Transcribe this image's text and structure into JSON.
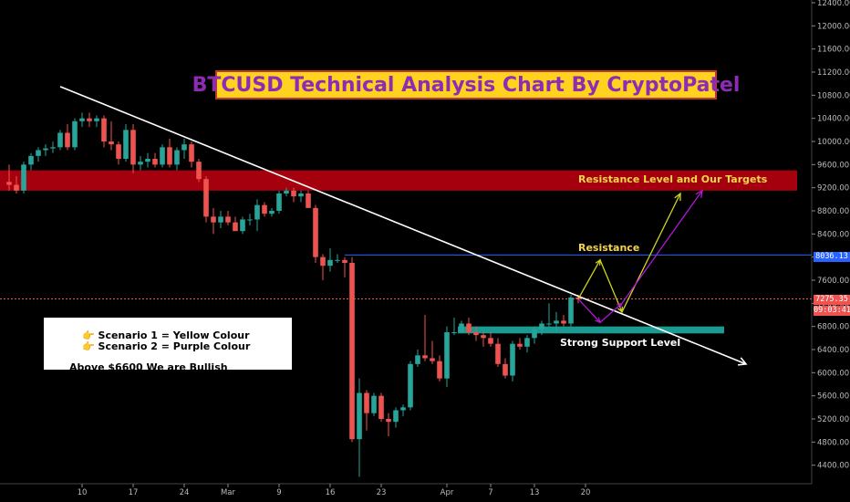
{
  "chart_data": {
    "type": "candlestick",
    "title": "BTCUSD Technical Analysis Chart By CryptoPatel",
    "ylim": [
      4000,
      12400
    ],
    "y_ticks": [
      4400,
      4800,
      5200,
      5600,
      6000,
      6400,
      6800,
      7200,
      7600,
      8000,
      8400,
      8800,
      9200,
      9600,
      10000,
      10400,
      10800,
      11200,
      11600,
      12000,
      12400
    ],
    "y_tick_labels": [
      "4400.00",
      "4800.00",
      "5200.00",
      "5600.00",
      "6000.00",
      "6400.00",
      "6800.00",
      "7200.00",
      "7600.00",
      "8000.00",
      "8400.00",
      "8800.00",
      "9200.00",
      "9600.00",
      "10000.00",
      "10400.00",
      "10800.00",
      "11200.00",
      "11600.00",
      "12000.00",
      "12400.00"
    ],
    "x_tick_labels": [
      {
        "label": "10",
        "day": 10
      },
      {
        "label": "17",
        "day": 17
      },
      {
        "label": "24",
        "day": 24
      },
      {
        "label": "Mar",
        "day": 30
      },
      {
        "label": "9",
        "day": 37
      },
      {
        "label": "16",
        "day": 44
      },
      {
        "label": "23",
        "day": 51
      },
      {
        "label": "Apr",
        "day": 60
      },
      {
        "label": "7",
        "day": 66
      },
      {
        "label": "13",
        "day": 72
      },
      {
        "label": "20",
        "day": 79
      }
    ],
    "candles": [
      {
        "day": 0,
        "o": 9300,
        "h": 9600,
        "l": 9150,
        "c": 9250
      },
      {
        "day": 1,
        "o": 9250,
        "h": 9400,
        "l": 9100,
        "c": 9150
      },
      {
        "day": 2,
        "o": 9150,
        "h": 9650,
        "l": 9100,
        "c": 9600
      },
      {
        "day": 3,
        "o": 9600,
        "h": 9800,
        "l": 9500,
        "c": 9750
      },
      {
        "day": 4,
        "o": 9750,
        "h": 9900,
        "l": 9650,
        "c": 9850
      },
      {
        "day": 5,
        "o": 9850,
        "h": 9950,
        "l": 9750,
        "c": 9880
      },
      {
        "day": 6,
        "o": 9880,
        "h": 10000,
        "l": 9800,
        "c": 9900
      },
      {
        "day": 7,
        "o": 9900,
        "h": 10200,
        "l": 9850,
        "c": 10150
      },
      {
        "day": 8,
        "o": 10150,
        "h": 10300,
        "l": 9850,
        "c": 9900
      },
      {
        "day": 9,
        "o": 9900,
        "h": 10400,
        "l": 9850,
        "c": 10350
      },
      {
        "day": 10,
        "o": 10350,
        "h": 10500,
        "l": 10250,
        "c": 10400
      },
      {
        "day": 11,
        "o": 10400,
        "h": 10500,
        "l": 10250,
        "c": 10350
      },
      {
        "day": 12,
        "o": 10350,
        "h": 10450,
        "l": 10250,
        "c": 10400
      },
      {
        "day": 13,
        "o": 10400,
        "h": 10450,
        "l": 9900,
        "c": 10000
      },
      {
        "day": 14,
        "o": 10000,
        "h": 10350,
        "l": 9850,
        "c": 9950
      },
      {
        "day": 15,
        "o": 9950,
        "h": 10000,
        "l": 9600,
        "c": 9700
      },
      {
        "day": 16,
        "o": 9700,
        "h": 10300,
        "l": 9650,
        "c": 10200
      },
      {
        "day": 17,
        "o": 10200,
        "h": 10300,
        "l": 9450,
        "c": 9600
      },
      {
        "day": 18,
        "o": 9600,
        "h": 9750,
        "l": 9500,
        "c": 9650
      },
      {
        "day": 19,
        "o": 9650,
        "h": 9800,
        "l": 9550,
        "c": 9700
      },
      {
        "day": 20,
        "o": 9700,
        "h": 9800,
        "l": 9550,
        "c": 9600
      },
      {
        "day": 21,
        "o": 9600,
        "h": 9950,
        "l": 9550,
        "c": 9900
      },
      {
        "day": 22,
        "o": 9900,
        "h": 10050,
        "l": 9550,
        "c": 9600
      },
      {
        "day": 23,
        "o": 9600,
        "h": 9900,
        "l": 9500,
        "c": 9850
      },
      {
        "day": 24,
        "o": 9850,
        "h": 10050,
        "l": 9700,
        "c": 9950
      },
      {
        "day": 25,
        "o": 9950,
        "h": 10000,
        "l": 9550,
        "c": 9650
      },
      {
        "day": 26,
        "o": 9650,
        "h": 9700,
        "l": 9300,
        "c": 9350
      },
      {
        "day": 27,
        "o": 9350,
        "h": 9400,
        "l": 8600,
        "c": 8700
      },
      {
        "day": 28,
        "o": 8700,
        "h": 8850,
        "l": 8400,
        "c": 8600
      },
      {
        "day": 29,
        "o": 8600,
        "h": 8800,
        "l": 8500,
        "c": 8700
      },
      {
        "day": 30,
        "o": 8700,
        "h": 8800,
        "l": 8550,
        "c": 8600
      },
      {
        "day": 31,
        "o": 8600,
        "h": 8700,
        "l": 8450,
        "c": 8450
      },
      {
        "day": 32,
        "o": 8450,
        "h": 8700,
        "l": 8400,
        "c": 8650
      },
      {
        "day": 33,
        "o": 8650,
        "h": 8750,
        "l": 8550,
        "c": 8650
      },
      {
        "day": 34,
        "o": 8650,
        "h": 9000,
        "l": 8450,
        "c": 8900
      },
      {
        "day": 35,
        "o": 8900,
        "h": 8950,
        "l": 8700,
        "c": 8750
      },
      {
        "day": 36,
        "o": 8750,
        "h": 8850,
        "l": 8700,
        "c": 8800
      },
      {
        "day": 37,
        "o": 8800,
        "h": 9150,
        "l": 8750,
        "c": 9100
      },
      {
        "day": 38,
        "o": 9100,
        "h": 9200,
        "l": 9050,
        "c": 9150
      },
      {
        "day": 39,
        "o": 9150,
        "h": 9200,
        "l": 8950,
        "c": 9050
      },
      {
        "day": 40,
        "o": 9050,
        "h": 9150,
        "l": 8950,
        "c": 9100
      },
      {
        "day": 41,
        "o": 9100,
        "h": 9150,
        "l": 8850,
        "c": 8850
      },
      {
        "day": 42,
        "o": 8850,
        "h": 8900,
        "l": 7900,
        "c": 8000
      },
      {
        "day": 43,
        "o": 8000,
        "h": 8050,
        "l": 7600,
        "c": 7850
      },
      {
        "day": 44,
        "o": 7850,
        "h": 8150,
        "l": 7750,
        "c": 7950
      },
      {
        "day": 45,
        "o": 7950,
        "h": 8050,
        "l": 7900,
        "c": 7950
      },
      {
        "day": 46,
        "o": 7950,
        "h": 8000,
        "l": 7650,
        "c": 7900
      },
      {
        "day": 47,
        "o": 7900,
        "h": 8000,
        "l": 4800,
        "c": 4850
      },
      {
        "day": 48,
        "o": 4850,
        "h": 5900,
        "l": 4200,
        "c": 5650
      },
      {
        "day": 49,
        "o": 5650,
        "h": 5700,
        "l": 5000,
        "c": 5300
      },
      {
        "day": 50,
        "o": 5300,
        "h": 5650,
        "l": 5250,
        "c": 5600
      },
      {
        "day": 51,
        "o": 5600,
        "h": 5650,
        "l": 5150,
        "c": 5200
      },
      {
        "day": 52,
        "o": 5200,
        "h": 5300,
        "l": 4900,
        "c": 5150
      },
      {
        "day": 53,
        "o": 5150,
        "h": 5400,
        "l": 5050,
        "c": 5350
      },
      {
        "day": 54,
        "o": 5350,
        "h": 5450,
        "l": 5250,
        "c": 5400
      },
      {
        "day": 55,
        "o": 5400,
        "h": 6200,
        "l": 5350,
        "c": 6150
      },
      {
        "day": 56,
        "o": 6150,
        "h": 6400,
        "l": 6100,
        "c": 6300
      },
      {
        "day": 57,
        "o": 6300,
        "h": 7000,
        "l": 6200,
        "c": 6250
      },
      {
        "day": 58,
        "o": 6250,
        "h": 6550,
        "l": 6150,
        "c": 6200
      },
      {
        "day": 59,
        "o": 6200,
        "h": 6300,
        "l": 5850,
        "c": 5900
      },
      {
        "day": 60,
        "o": 5900,
        "h": 6800,
        "l": 5750,
        "c": 6700
      },
      {
        "day": 61,
        "o": 6700,
        "h": 6950,
        "l": 6650,
        "c": 6700
      },
      {
        "day": 62,
        "o": 6700,
        "h": 6900,
        "l": 6700,
        "c": 6850
      },
      {
        "day": 63,
        "o": 6850,
        "h": 6950,
        "l": 6650,
        "c": 6700
      },
      {
        "day": 64,
        "o": 6700,
        "h": 6800,
        "l": 6550,
        "c": 6650
      },
      {
        "day": 65,
        "o": 6650,
        "h": 6700,
        "l": 6450,
        "c": 6600
      },
      {
        "day": 66,
        "o": 6600,
        "h": 6700,
        "l": 6450,
        "c": 6500
      },
      {
        "day": 67,
        "o": 6500,
        "h": 6600,
        "l": 6100,
        "c": 6150
      },
      {
        "day": 68,
        "o": 6150,
        "h": 6250,
        "l": 5900,
        "c": 5950
      },
      {
        "day": 69,
        "o": 5950,
        "h": 6550,
        "l": 5850,
        "c": 6500
      },
      {
        "day": 70,
        "o": 6500,
        "h": 6600,
        "l": 6400,
        "c": 6450
      },
      {
        "day": 71,
        "o": 6450,
        "h": 6650,
        "l": 6350,
        "c": 6600
      },
      {
        "day": 72,
        "o": 6600,
        "h": 6800,
        "l": 6500,
        "c": 6750
      },
      {
        "day": 73,
        "o": 6750,
        "h": 6900,
        "l": 6650,
        "c": 6850
      },
      {
        "day": 74,
        "o": 6850,
        "h": 7200,
        "l": 6800,
        "c": 6850
      },
      {
        "day": 75,
        "o": 6850,
        "h": 7050,
        "l": 6700,
        "c": 6900
      },
      {
        "day": 76,
        "o": 6900,
        "h": 7000,
        "l": 6800,
        "c": 6850
      },
      {
        "day": 77,
        "o": 6850,
        "h": 7350,
        "l": 6800,
        "c": 7300
      },
      {
        "day": 78,
        "o": 7300,
        "h": 7350,
        "l": 7200,
        "c": 7275
      }
    ],
    "resistance_zone": {
      "low": 9150,
      "high": 9500,
      "label": "Resistance Level and Our Targets"
    },
    "support_zone": {
      "low": 6680,
      "high": 6800,
      "label": "Strong Support Level"
    },
    "resistance_line": {
      "price": 8036.13,
      "label": "Resistance"
    },
    "current_price": {
      "price": 7275.35,
      "label": "7275.35",
      "countdown": "09:03:41"
    },
    "resistance_price_label": "8036.13",
    "trendline": {
      "from": {
        "day": 7,
        "price": 10950
      },
      "to": {
        "day": 101,
        "price": 6150
      }
    },
    "scenario_yellow_path": [
      {
        "day": 78,
        "price": 7275
      },
      {
        "day": 81,
        "price": 7950
      },
      {
        "day": 84,
        "price": 7050
      },
      {
        "day": 92,
        "price": 9100
      }
    ],
    "scenario_purple_path": [
      {
        "day": 78,
        "price": 7275
      },
      {
        "day": 81,
        "price": 6870
      },
      {
        "day": 84,
        "price": 7200
      },
      {
        "day": 95,
        "price": 9150
      }
    ],
    "colors": {
      "up": "#26a69a",
      "down": "#ef5350",
      "resistance_zone": "#b3000f",
      "support_zone": "#1aa39a",
      "trendline": "#ffffff",
      "yellow": "#cfd51a",
      "purple": "#b217d9",
      "label_yellow": "#f5d54b",
      "price_tag_current": "#ef5350",
      "price_tag_resistance": "#2962ff"
    }
  },
  "notes": {
    "scenario1": "Scenario 1 = Yellow Colour",
    "scenario2": "Scenario 2 = Purple Colour",
    "bullish": "Above $6600 We are Bullish"
  }
}
